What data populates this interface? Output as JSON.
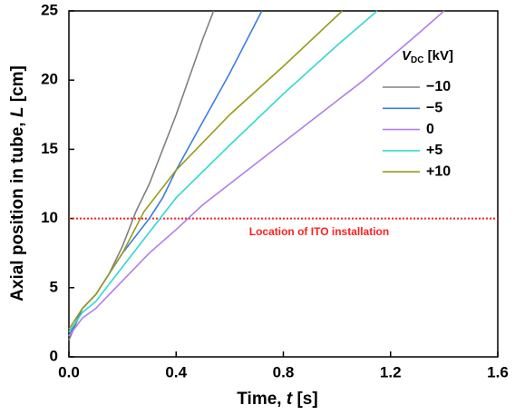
{
  "chart_data": {
    "type": "line",
    "x_label": [
      "Time, ",
      "t",
      " [s]"
    ],
    "y_label": [
      "Axial position in tube, ",
      "L",
      " [cm]"
    ],
    "legend_title": [
      "V",
      "DC",
      " [kV]"
    ],
    "legend_position": "upper right",
    "xlim": [
      0,
      1.6
    ],
    "xticks": [
      {
        "value": 0,
        "label": "0.0"
      },
      0.4,
      0.8,
      1.2,
      1.6
    ],
    "ylim": [
      0,
      25
    ],
    "yticks": [
      0,
      5,
      10,
      15,
      20,
      25
    ],
    "reference_line": {
      "value": 10,
      "label": "Location of ITO installation",
      "color": "#ff2020"
    },
    "series": [
      {
        "name": "−10",
        "color": "#808080",
        "x": [
          0,
          0.05,
          0.1,
          0.15,
          0.2,
          0.25,
          0.3,
          0.4,
          0.5,
          0.54
        ],
        "values": [
          1.2,
          3.5,
          4.5,
          6,
          8,
          10.5,
          12.5,
          17.5,
          23,
          25
        ]
      },
      {
        "name": "−5",
        "color": "#3a7ee0",
        "x": [
          0,
          0.05,
          0.1,
          0.2,
          0.3,
          0.35,
          0.4,
          0.5,
          0.6,
          0.72
        ],
        "values": [
          1.5,
          3.5,
          4.5,
          7.5,
          10,
          11.5,
          13.5,
          17,
          20.5,
          25
        ]
      },
      {
        "name": "0",
        "color": "#b07ee8",
        "x": [
          0,
          0.05,
          0.1,
          0.2,
          0.3,
          0.4,
          0.5,
          0.7,
          0.9,
          1.1,
          1.3,
          1.4
        ],
        "values": [
          1.5,
          2.8,
          3.5,
          5.5,
          7.5,
          9.2,
          11,
          14,
          17,
          20,
          23.3,
          25
        ]
      },
      {
        "name": "+5",
        "color": "#30d8d0",
        "x": [
          0,
          0.05,
          0.1,
          0.2,
          0.3,
          0.4,
          0.6,
          0.8,
          1.0,
          1.15
        ],
        "values": [
          1.8,
          3.2,
          4,
          6.5,
          9,
          11.5,
          15.3,
          19,
          22.5,
          25
        ]
      },
      {
        "name": "+10",
        "color": "#9a9a1a",
        "x": [
          0,
          0.05,
          0.1,
          0.2,
          0.28,
          0.4,
          0.6,
          0.8,
          1.02
        ],
        "values": [
          2,
          3.5,
          4.5,
          7.5,
          10.5,
          13.5,
          17.5,
          21,
          25
        ]
      }
    ]
  }
}
